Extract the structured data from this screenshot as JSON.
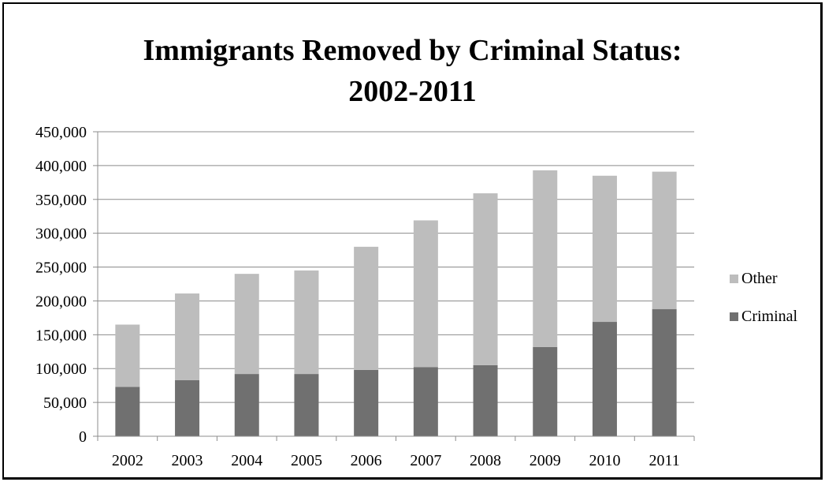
{
  "chart_data": {
    "type": "bar",
    "stacked": true,
    "title_line1": "Immigrants Removed by Criminal Status:",
    "title_line2": "2002-2011",
    "categories": [
      "2002",
      "2003",
      "2004",
      "2005",
      "2006",
      "2007",
      "2008",
      "2009",
      "2010",
      "2011"
    ],
    "series": [
      {
        "name": "Criminal",
        "color": "#707070",
        "values": [
          73000,
          83000,
          92000,
          92000,
          98000,
          102000,
          105000,
          132000,
          169000,
          188000
        ]
      },
      {
        "name": "Other",
        "color": "#bdbdbd",
        "values": [
          92000,
          128000,
          148000,
          153000,
          182000,
          217000,
          254000,
          261000,
          216000,
          203000
        ]
      }
    ],
    "ylim": [
      0,
      450000
    ],
    "yticks": [
      0,
      50000,
      100000,
      150000,
      200000,
      250000,
      300000,
      350000,
      400000,
      450000
    ],
    "ytick_labels": [
      "0",
      "50,000",
      "100,000",
      "150,000",
      "200,000",
      "250,000",
      "300,000",
      "350,000",
      "400,000",
      "450,000"
    ],
    "grid": true,
    "legend_position": "right",
    "legend": [
      {
        "name": "Other",
        "color": "#bdbdbd"
      },
      {
        "name": "Criminal",
        "color": "#707070"
      }
    ]
  }
}
